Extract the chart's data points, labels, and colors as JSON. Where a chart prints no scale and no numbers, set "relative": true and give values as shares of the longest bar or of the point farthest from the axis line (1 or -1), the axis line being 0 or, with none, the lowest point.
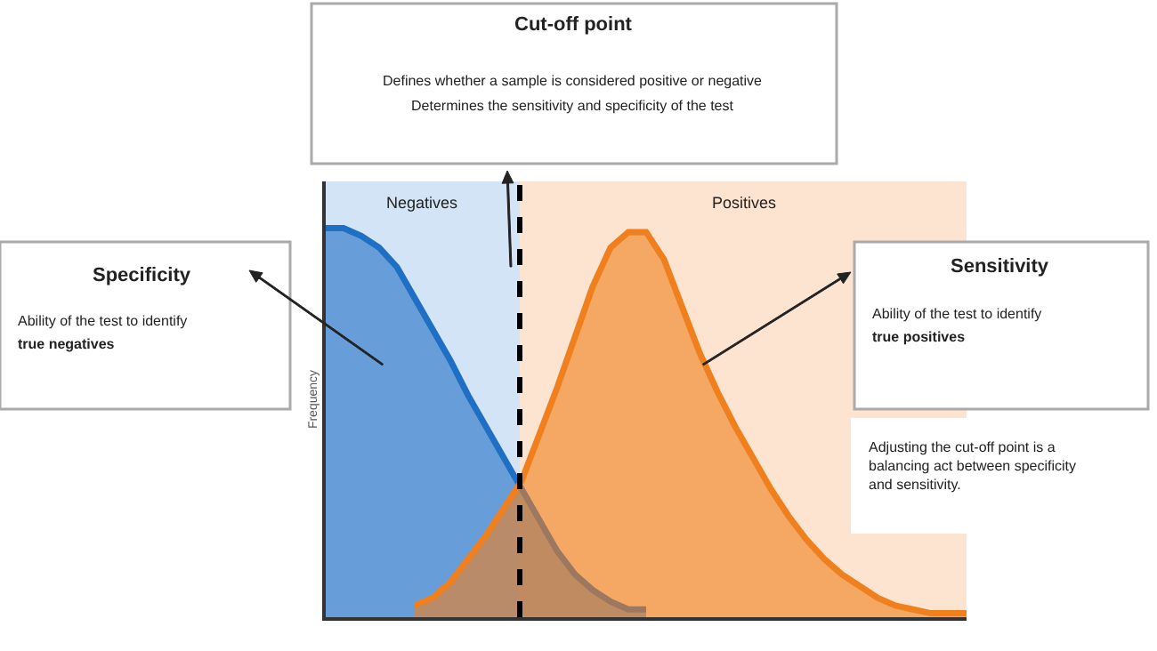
{
  "chart_data": {
    "type": "area",
    "relative": true,
    "ylabel": "Frequency",
    "categories": [
      null,
      null,
      null,
      null,
      null,
      null,
      null,
      null,
      null,
      null,
      null,
      null,
      null,
      null,
      null,
      null,
      null,
      null,
      null,
      null,
      null,
      null,
      null,
      null,
      null,
      null,
      null,
      null,
      null,
      null,
      null,
      null,
      null,
      null,
      null,
      null,
      null
    ],
    "series": [
      {
        "color": "#1f6fc5",
        "values": [
          1.0,
          1.0,
          0.98,
          0.95,
          0.9,
          0.82,
          0.74,
          0.66,
          0.57,
          0.49,
          0.41,
          0.33,
          0.25,
          0.17,
          0.11,
          0.07,
          0.04,
          0.02,
          0.02,
          null,
          null,
          null,
          null,
          null,
          null,
          null,
          null,
          null,
          null,
          null,
          null,
          null,
          null,
          null,
          null,
          null,
          null
        ]
      },
      {
        "color": "#f07f1d",
        "values": [
          null,
          null,
          null,
          null,
          null,
          0.03,
          0.05,
          0.09,
          0.15,
          0.21,
          0.28,
          0.35,
          0.47,
          0.59,
          0.72,
          0.85,
          0.95,
          0.99,
          0.99,
          0.92,
          0.8,
          0.68,
          0.58,
          0.49,
          0.41,
          0.33,
          0.26,
          0.2,
          0.15,
          0.11,
          0.08,
          0.05,
          0.03,
          0.02,
          0.01,
          0.01,
          0.01
        ]
      }
    ],
    "annotations": [
      "Cut-off point",
      "Defines whether a sample is considered positive or negative",
      "Determines the sensitivity and specificity of the test",
      "Specificity",
      "Ability of the test to identify",
      "true negatives",
      "Sensitivity",
      "Ability of the test to identify",
      "true positives",
      "Adjusting the cut-off point is a balancing act between specificity and sensitivity.",
      "Negatives",
      "Positives"
    ]
  }
}
